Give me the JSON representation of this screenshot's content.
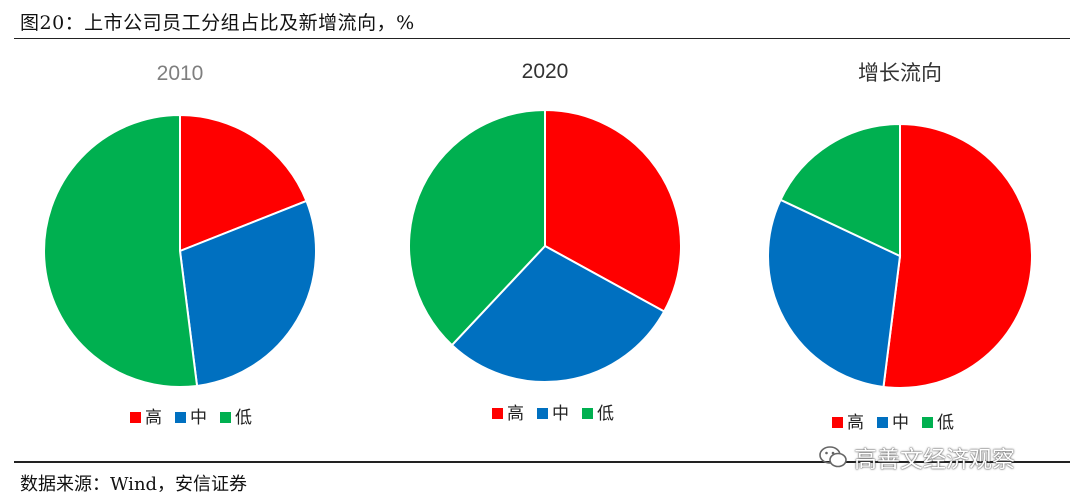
{
  "header": {
    "figure_title": "图20：上市公司员工分组占比及新增流向，%"
  },
  "footer": {
    "source": "数据来源：Wind，安信证券",
    "watermark": "高善文经济观察"
  },
  "colors": {
    "高": "#ff0000",
    "中": "#0070c0",
    "低": "#00b050",
    "title_2010": "#7f7f7f",
    "title_default": "#333333"
  },
  "chart_data": [
    {
      "type": "pie",
      "title": "2010",
      "categories": [
        "高",
        "中",
        "低"
      ],
      "values": [
        19,
        29,
        52
      ]
    },
    {
      "type": "pie",
      "title": "2020",
      "categories": [
        "高",
        "中",
        "低"
      ],
      "values": [
        33,
        29,
        38
      ]
    },
    {
      "type": "pie",
      "title": "增长流向",
      "categories": [
        "高",
        "中",
        "低"
      ],
      "values": [
        52,
        30,
        18
      ]
    }
  ]
}
